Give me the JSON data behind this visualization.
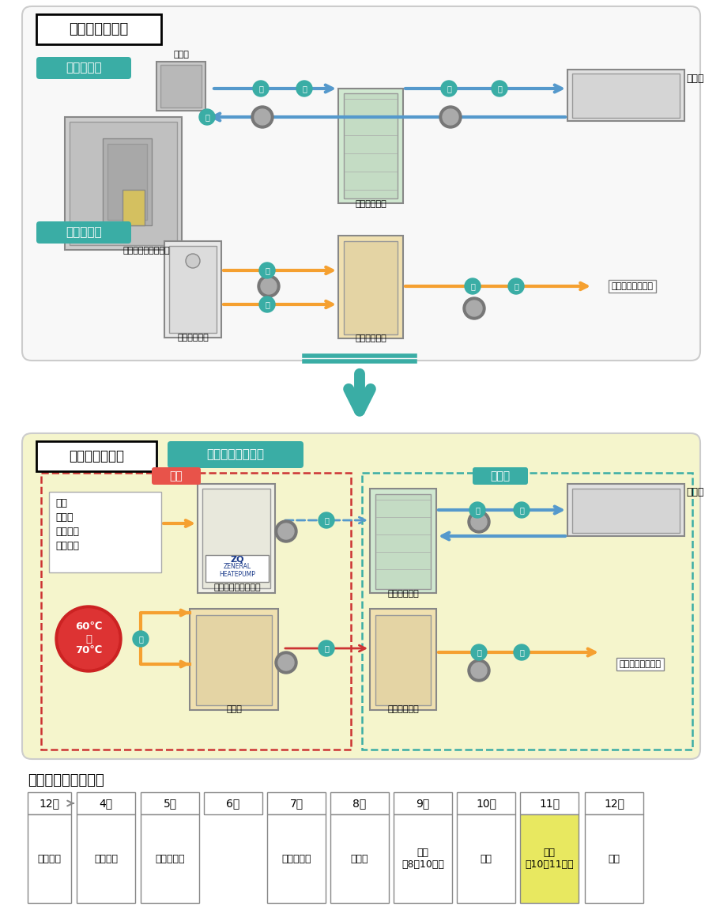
{
  "bg_color": "#ffffff",
  "before_bg": "#f8f8f8",
  "after_bg": "#f5f5cc",
  "before_label": "リニューアル前",
  "after_label": "リニューアル後",
  "ac_label": "空調の場合",
  "hw_label": "給湯の場合",
  "after_case_label": "空調・給湯の場合",
  "new_label": "新設",
  "reuse_label": "再利用",
  "absorb_label": "吸収式冷温水発生器",
  "cooling_tower_label": "冷却塔",
  "cold_tank_label": "冷温水タンク",
  "ac_unit_label": "空調機",
  "hw_boiler_label": "給湯ボイラー",
  "hw_tank_label": "給湯水タンク",
  "shower_label": "カラン・シャワー",
  "heat_src_label": "熱源",
  "heat_items": [
    "・井水",
    "・地中熱",
    "・排湯熱"
  ],
  "hp_label": "水冷式ヒートポンプ",
  "storage_label": "貯湯槽",
  "temp_label": "60℃\n〜\n70℃",
  "cold_tank2_label": "冷温水タンク",
  "hw_tank2_label": "給湯水タンク",
  "schedule_title": "導入スケジュール例",
  "schedule_months": [
    "12月",
    "4月",
    "5月",
    "6月",
    "7月",
    "8月",
    "9月",
    "10月",
    "11月",
    "12月"
  ],
  "schedule_tasks": [
    "プレゼン",
    "書類作成",
    "補助金申請",
    "",
    "補助金採択",
    "ご注文",
    "製作\n（8〜10月）",
    "納品",
    "工事\n（10〜11月）",
    "完成"
  ],
  "highlight_col": 8,
  "teal": "#3aada5",
  "orange": "#f5a030",
  "blue_arrow": "#5599cc",
  "red_circle": "#cc2222",
  "red_dashed": "#cc3333",
  "pink_bg": "#e8534a",
  "yellow_highlight": "#e8e860",
  "water_color": "#3aada5",
  "pump_outer": "#777777",
  "pump_inner": "#aaaaaa"
}
